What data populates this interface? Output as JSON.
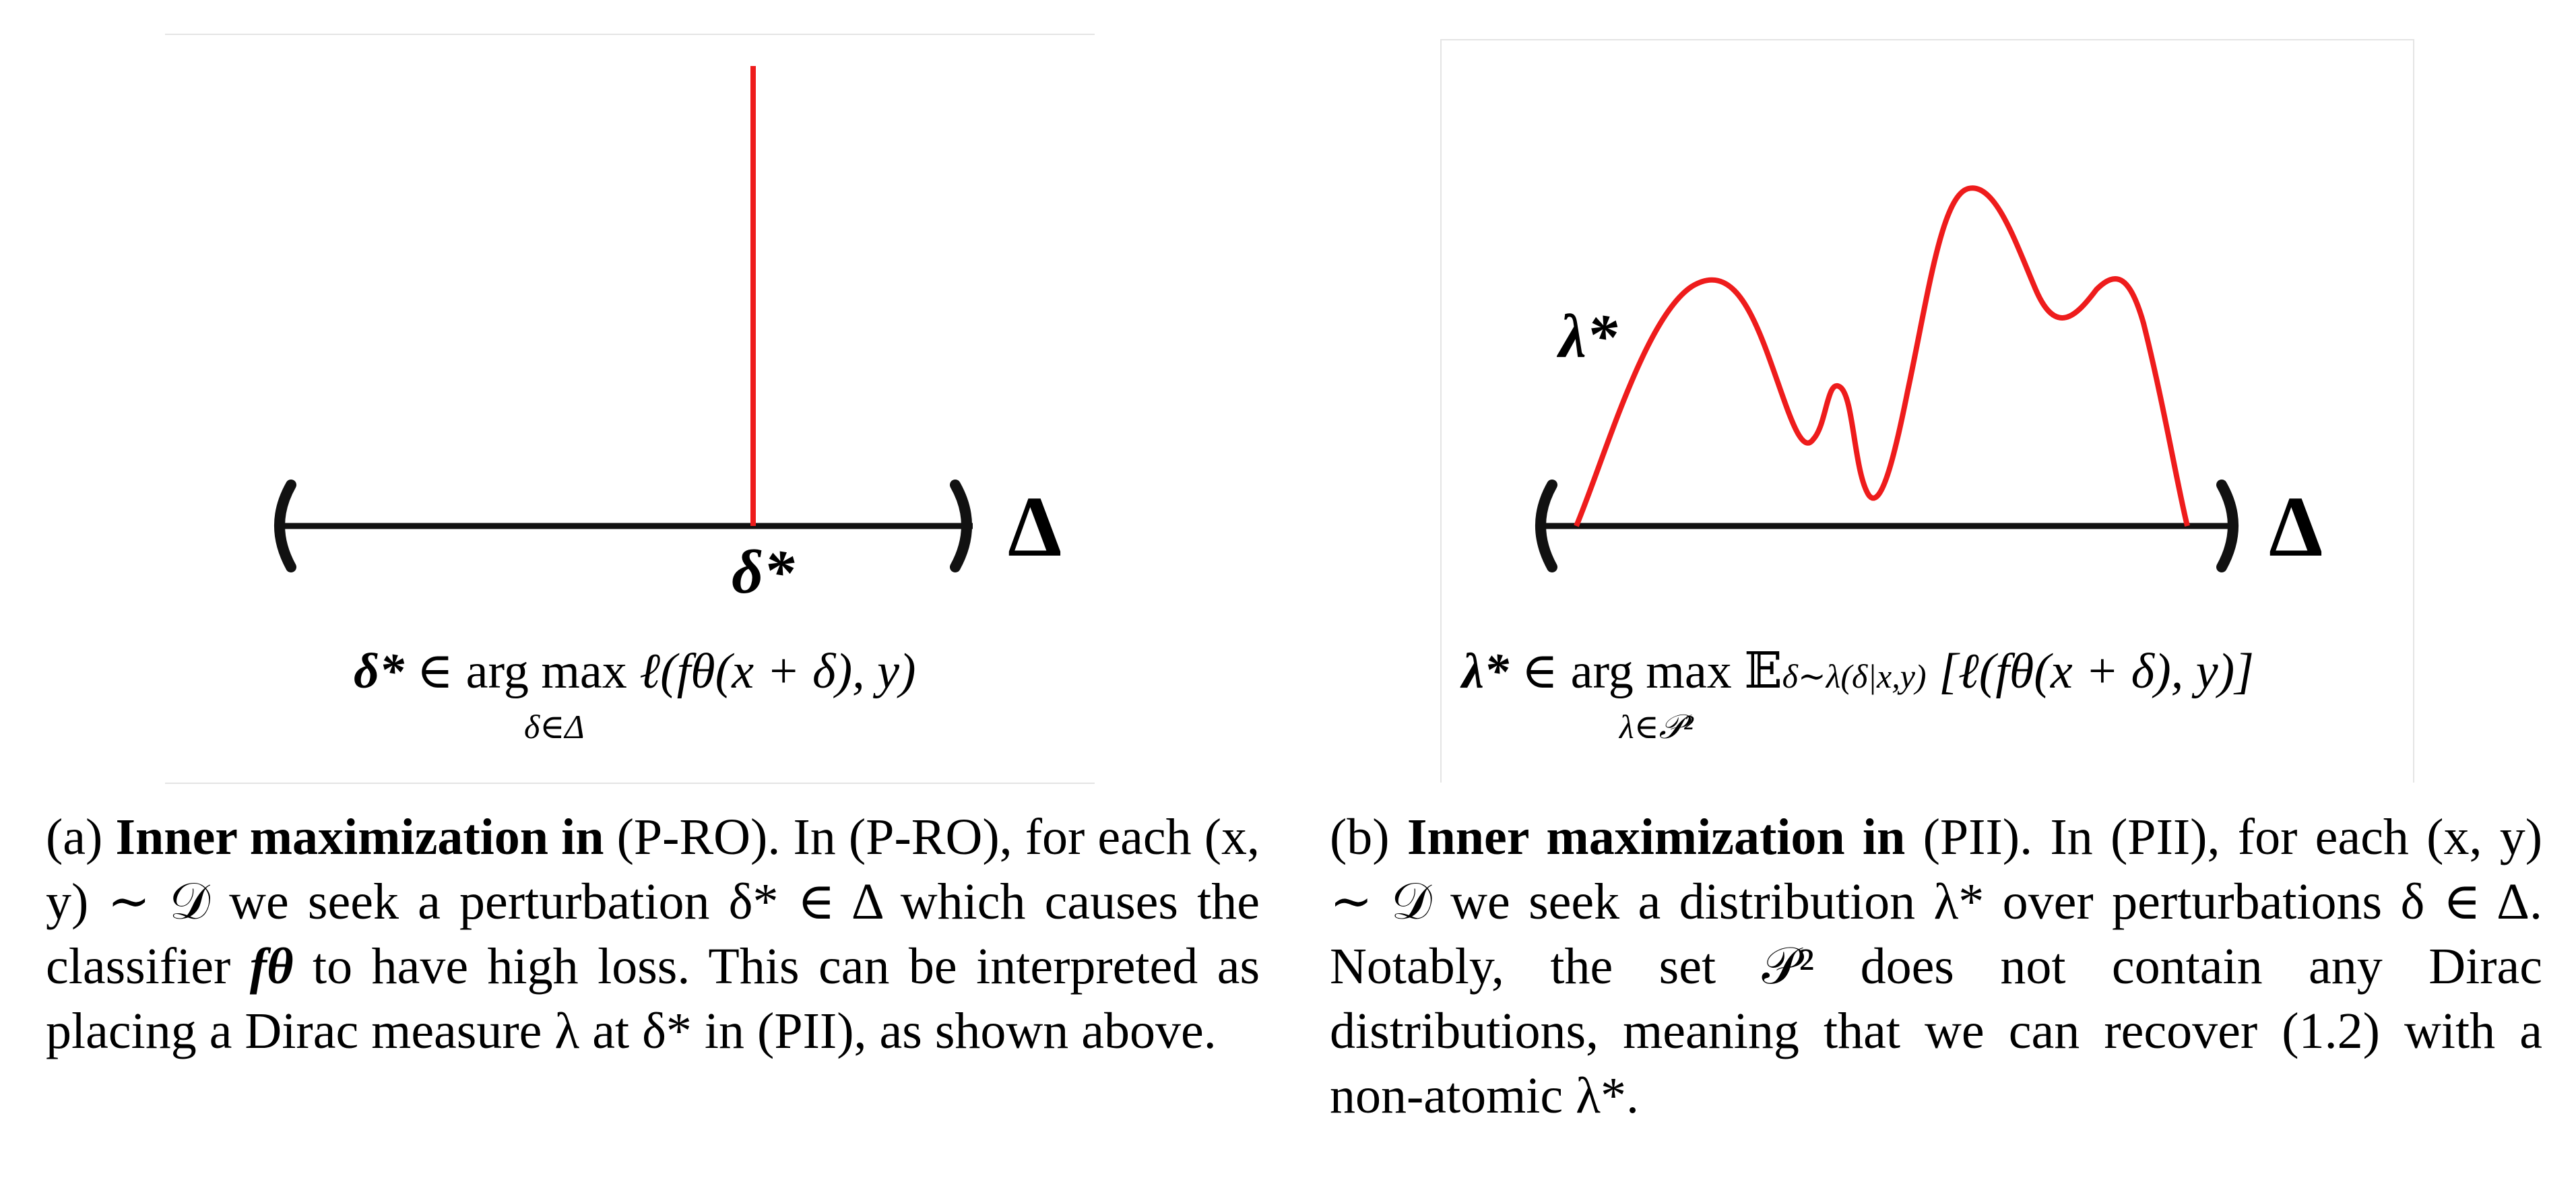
{
  "panels": [
    {
      "id": "a",
      "figure": {
        "interval_symbol": "Δ",
        "point_label": "δ*",
        "formula": {
          "lhs": "δ*",
          "op": "∈ arg max",
          "subscript": "δ∈Δ",
          "body": "ℓ(fθ(x + δ), y)"
        }
      },
      "caption": {
        "tag": "(a)",
        "title": "Inner maximization in",
        "title_ref": "(P-RO).",
        "text_1": "In (P-RO), for each (x, y) ∼ 𝒟 we seek a perturbation δ* ∈ Δ which causes the classifier",
        "classifier": "fθ",
        "text_2": "to have high loss. This can be interpreted as placing a Dirac measure λ at δ* in (PII), as shown above."
      }
    },
    {
      "id": "b",
      "figure": {
        "interval_symbol": "Δ",
        "curve_label": "λ*",
        "formula": {
          "lhs": "λ*",
          "op": "∈ arg max",
          "subscript": "λ∈𝒫²",
          "expectation": "𝔼",
          "exp_subscript": "δ∼λ(δ|x,y)",
          "body": "[ℓ(fθ(x + δ), y)]"
        }
      },
      "caption": {
        "tag": "(b)",
        "title": "Inner maximization in",
        "title_ref": "(PII).",
        "text": "In (PII), for each (x, y) ∼ 𝒟 we seek a distribution λ* over perturbations δ ∈ Δ. Notably, the set 𝒫² does not contain any Dirac distributions, meaning that we can recover (1.2) with a non-atomic λ*."
      }
    }
  ],
  "colors": {
    "curve": "#ee1c1c",
    "axis": "#111111",
    "frame": "#e4e4e4"
  }
}
